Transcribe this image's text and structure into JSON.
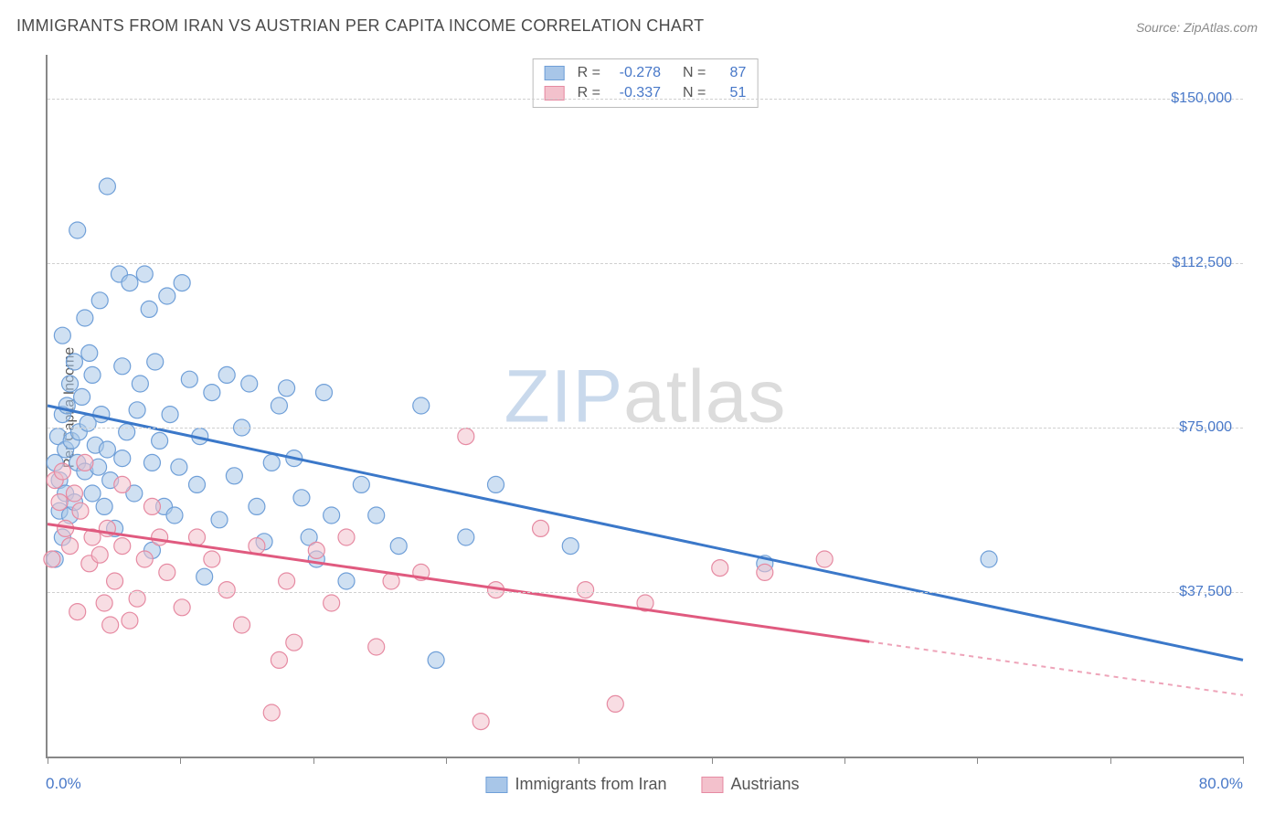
{
  "title": "IMMIGRANTS FROM IRAN VS AUSTRIAN PER CAPITA INCOME CORRELATION CHART",
  "source": "Source: ZipAtlas.com",
  "watermark": {
    "part1": "ZIP",
    "part2": "atlas"
  },
  "chart": {
    "type": "scatter",
    "y_axis_label": "Per Capita Income",
    "xlim": [
      0,
      80
    ],
    "ylim": [
      0,
      160000
    ],
    "x_min_label": "0.0%",
    "x_max_label": "80.0%",
    "x_ticks": [
      0,
      8.89,
      17.78,
      26.67,
      35.56,
      44.44,
      53.33,
      62.22,
      71.11,
      80
    ],
    "y_ticks": [
      {
        "v": 37500,
        "label": "$37,500"
      },
      {
        "v": 75000,
        "label": "$75,000"
      },
      {
        "v": 112500,
        "label": "$112,500"
      },
      {
        "v": 150000,
        "label": "$150,000"
      }
    ],
    "grid_color": "#d0d0d0",
    "background_color": "#ffffff",
    "series": [
      {
        "name": "Immigrants from Iran",
        "fill": "#a8c6e8",
        "stroke": "#6f9fd8",
        "fill_opacity": 0.55,
        "marker_r": 9,
        "r_label": "R =",
        "r_value": "-0.278",
        "n_label": "N =",
        "n_value": "87",
        "trend": {
          "stroke": "#3b78c9",
          "width": 3,
          "x1": 0,
          "y1": 80000,
          "x2": 80,
          "y2": 22000,
          "solid_xmax": 80
        },
        "points": [
          [
            0.5,
            45000
          ],
          [
            0.5,
            67000
          ],
          [
            0.7,
            73000
          ],
          [
            0.8,
            56000
          ],
          [
            0.8,
            63000
          ],
          [
            1.0,
            50000
          ],
          [
            1.0,
            96000
          ],
          [
            1.0,
            78000
          ],
          [
            1.2,
            70000
          ],
          [
            1.2,
            60000
          ],
          [
            1.3,
            80000
          ],
          [
            1.5,
            85000
          ],
          [
            1.5,
            55000
          ],
          [
            1.6,
            72000
          ],
          [
            1.8,
            90000
          ],
          [
            1.8,
            58000
          ],
          [
            2.0,
            120000
          ],
          [
            2.0,
            67000
          ],
          [
            2.1,
            74000
          ],
          [
            2.3,
            82000
          ],
          [
            2.5,
            100000
          ],
          [
            2.5,
            65000
          ],
          [
            2.7,
            76000
          ],
          [
            2.8,
            92000
          ],
          [
            3.0,
            60000
          ],
          [
            3.0,
            87000
          ],
          [
            3.2,
            71000
          ],
          [
            3.4,
            66000
          ],
          [
            3.5,
            104000
          ],
          [
            3.6,
            78000
          ],
          [
            3.8,
            57000
          ],
          [
            4.0,
            70000
          ],
          [
            4.0,
            130000
          ],
          [
            4.2,
            63000
          ],
          [
            4.5,
            52000
          ],
          [
            4.8,
            110000
          ],
          [
            5.0,
            68000
          ],
          [
            5.0,
            89000
          ],
          [
            5.3,
            74000
          ],
          [
            5.5,
            108000
          ],
          [
            5.8,
            60000
          ],
          [
            6.0,
            79000
          ],
          [
            6.2,
            85000
          ],
          [
            6.5,
            110000
          ],
          [
            6.8,
            102000
          ],
          [
            7.0,
            47000
          ],
          [
            7.0,
            67000
          ],
          [
            7.2,
            90000
          ],
          [
            7.5,
            72000
          ],
          [
            7.8,
            57000
          ],
          [
            8.0,
            105000
          ],
          [
            8.2,
            78000
          ],
          [
            8.5,
            55000
          ],
          [
            8.8,
            66000
          ],
          [
            9.0,
            108000
          ],
          [
            9.5,
            86000
          ],
          [
            10.0,
            62000
          ],
          [
            10.2,
            73000
          ],
          [
            10.5,
            41000
          ],
          [
            11.0,
            83000
          ],
          [
            11.5,
            54000
          ],
          [
            12.0,
            87000
          ],
          [
            12.5,
            64000
          ],
          [
            13.0,
            75000
          ],
          [
            13.5,
            85000
          ],
          [
            14.0,
            57000
          ],
          [
            14.5,
            49000
          ],
          [
            15.0,
            67000
          ],
          [
            15.5,
            80000
          ],
          [
            16.0,
            84000
          ],
          [
            16.5,
            68000
          ],
          [
            17.0,
            59000
          ],
          [
            17.5,
            50000
          ],
          [
            18.0,
            45000
          ],
          [
            18.5,
            83000
          ],
          [
            19.0,
            55000
          ],
          [
            20.0,
            40000
          ],
          [
            21.0,
            62000
          ],
          [
            22.0,
            55000
          ],
          [
            23.5,
            48000
          ],
          [
            25.0,
            80000
          ],
          [
            26.0,
            22000
          ],
          [
            28.0,
            50000
          ],
          [
            30.0,
            62000
          ],
          [
            35.0,
            48000
          ],
          [
            48.0,
            44000
          ],
          [
            63.0,
            45000
          ]
        ]
      },
      {
        "name": "Austrians",
        "fill": "#f3c1cc",
        "stroke": "#e68aa2",
        "fill_opacity": 0.55,
        "marker_r": 9,
        "r_label": "R =",
        "r_value": "-0.337",
        "n_label": "N =",
        "n_value": "51",
        "trend": {
          "stroke": "#e05a7f",
          "width": 3,
          "x1": 0,
          "y1": 53000,
          "x2": 80,
          "y2": 14000,
          "solid_xmax": 55
        },
        "points": [
          [
            0.3,
            45000
          ],
          [
            0.5,
            63000
          ],
          [
            0.8,
            58000
          ],
          [
            1.0,
            65000
          ],
          [
            1.2,
            52000
          ],
          [
            1.5,
            48000
          ],
          [
            1.8,
            60000
          ],
          [
            2.0,
            33000
          ],
          [
            2.2,
            56000
          ],
          [
            2.5,
            67000
          ],
          [
            2.8,
            44000
          ],
          [
            3.0,
            50000
          ],
          [
            3.5,
            46000
          ],
          [
            3.8,
            35000
          ],
          [
            4.0,
            52000
          ],
          [
            4.2,
            30000
          ],
          [
            4.5,
            40000
          ],
          [
            5.0,
            48000
          ],
          [
            5.0,
            62000
          ],
          [
            5.5,
            31000
          ],
          [
            6.0,
            36000
          ],
          [
            6.5,
            45000
          ],
          [
            7.0,
            57000
          ],
          [
            7.5,
            50000
          ],
          [
            8.0,
            42000
          ],
          [
            9.0,
            34000
          ],
          [
            10.0,
            50000
          ],
          [
            11.0,
            45000
          ],
          [
            12.0,
            38000
          ],
          [
            13.0,
            30000
          ],
          [
            14.0,
            48000
          ],
          [
            15.0,
            10000
          ],
          [
            15.5,
            22000
          ],
          [
            16.0,
            40000
          ],
          [
            16.5,
            26000
          ],
          [
            18.0,
            47000
          ],
          [
            19.0,
            35000
          ],
          [
            20.0,
            50000
          ],
          [
            22.0,
            25000
          ],
          [
            23.0,
            40000
          ],
          [
            25.0,
            42000
          ],
          [
            28.0,
            73000
          ],
          [
            29.0,
            8000
          ],
          [
            30.0,
            38000
          ],
          [
            33.0,
            52000
          ],
          [
            36.0,
            38000
          ],
          [
            38.0,
            12000
          ],
          [
            40.0,
            35000
          ],
          [
            45.0,
            43000
          ],
          [
            48.0,
            42000
          ],
          [
            52.0,
            45000
          ]
        ]
      }
    ],
    "legend_bottom": [
      {
        "label": "Immigrants from Iran",
        "fill": "#a8c6e8",
        "stroke": "#6f9fd8"
      },
      {
        "label": "Austrians",
        "fill": "#f3c1cc",
        "stroke": "#e68aa2"
      }
    ]
  }
}
